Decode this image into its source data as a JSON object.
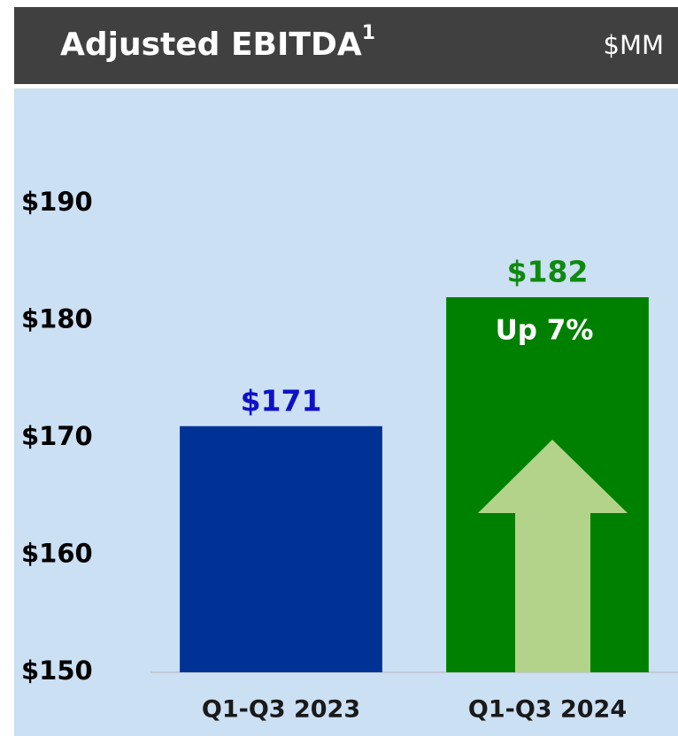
{
  "chart_data": {
    "type": "bar",
    "title": "Adjusted EBITDA",
    "title_footnote": "1",
    "subtitle": "$MM",
    "categories": [
      "Q1-Q3 2023",
      "Q1-Q3 2024"
    ],
    "values": [
      171,
      182
    ],
    "value_labels": [
      "$171",
      "$182"
    ],
    "colors": [
      "#003296",
      "#008000"
    ],
    "value_label_colors": [
      "#1010c8",
      "#0f8a0f"
    ],
    "annotation": "Up 7%",
    "ylim": [
      150,
      190
    ],
    "yticks": [
      {
        "value": 150,
        "label": "$150"
      },
      {
        "value": 160,
        "label": "$160"
      },
      {
        "value": 170,
        "label": "$170"
      },
      {
        "value": 180,
        "label": "$180"
      },
      {
        "value": 190,
        "label": "$190"
      }
    ],
    "grid": false
  }
}
